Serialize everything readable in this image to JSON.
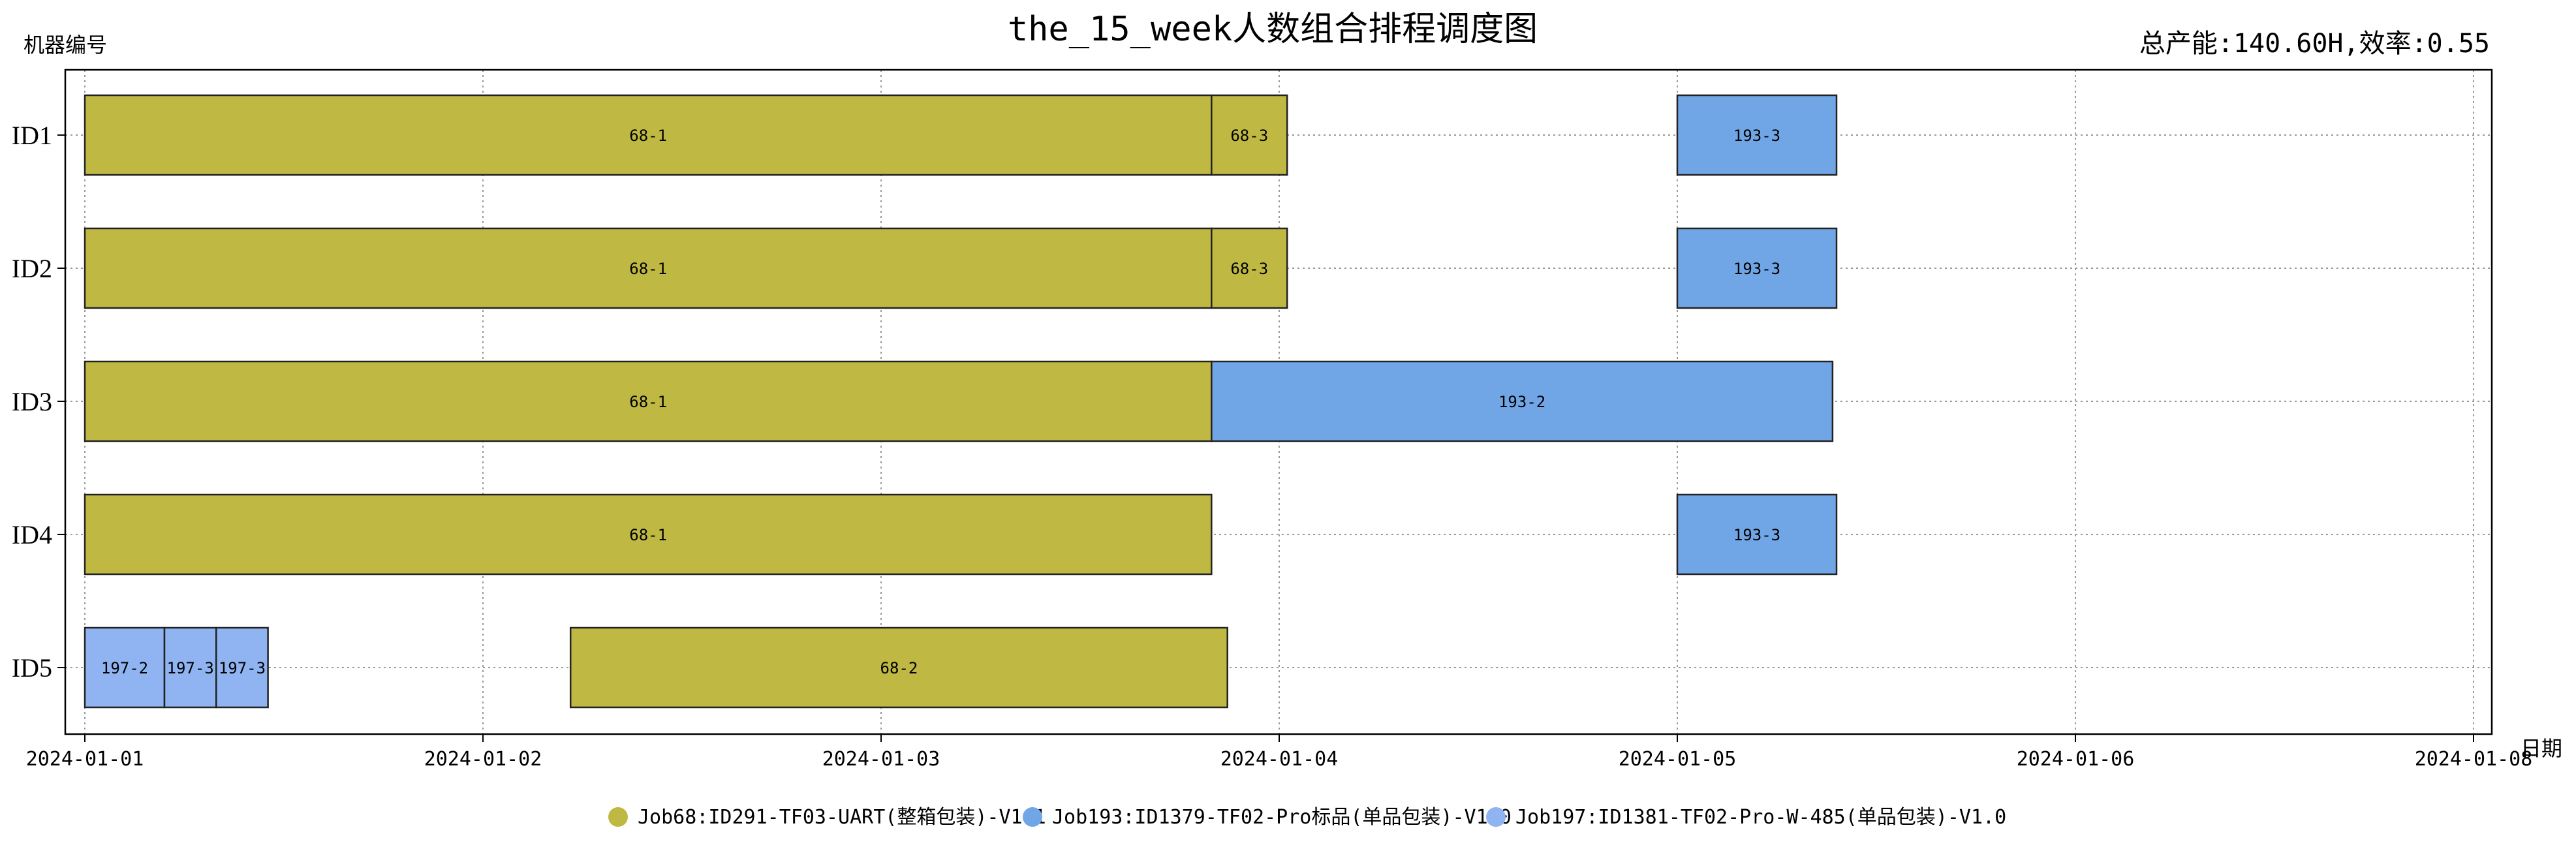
{
  "chart_data": {
    "type": "gantt",
    "title": "the_15_week人数组合排程调度图",
    "summary": "总产能:140.60H,效率:0.55",
    "ylabel": "机器编号",
    "xlabel": "日期",
    "x_ticks": [
      "2024-01-01",
      "2024-01-02",
      "2024-01-03",
      "2024-01-04",
      "2024-01-05",
      "2024-01-06",
      "2024-01-08"
    ],
    "x_range_days": [
      0,
      6
    ],
    "machines": [
      "ID1",
      "ID2",
      "ID3",
      "ID4",
      "ID5"
    ],
    "grid": true,
    "legend_position": "bottom-center",
    "jobs": [
      {
        "id": "68",
        "name": "Job68:ID291-TF03-UART(整箱包装)-V1.1",
        "color": "#bfb843"
      },
      {
        "id": "193",
        "name": "Job193:ID1379-TF02-Pro标品(单品包装)-V1.0",
        "color": "#71a6e6"
      },
      {
        "id": "197",
        "name": "Job197:ID1381-TF02-Pro-W-485(单品包装)-V1.0",
        "color": "#8fb4f1"
      }
    ],
    "tasks": [
      {
        "machine": "ID1",
        "job": "68",
        "label": "68-1",
        "start": 0.0,
        "end": 2.83
      },
      {
        "machine": "ID1",
        "job": "68",
        "label": "68-3",
        "start": 2.83,
        "end": 3.02
      },
      {
        "machine": "ID1",
        "job": "193",
        "label": "193-3",
        "start": 4.0,
        "end": 4.4
      },
      {
        "machine": "ID2",
        "job": "68",
        "label": "68-1",
        "start": 0.0,
        "end": 2.83
      },
      {
        "machine": "ID2",
        "job": "68",
        "label": "68-3",
        "start": 2.83,
        "end": 3.02
      },
      {
        "machine": "ID2",
        "job": "193",
        "label": "193-3",
        "start": 4.0,
        "end": 4.4
      },
      {
        "machine": "ID3",
        "job": "68",
        "label": "68-1",
        "start": 0.0,
        "end": 2.83
      },
      {
        "machine": "ID3",
        "job": "193",
        "label": "193-2",
        "start": 2.83,
        "end": 4.39
      },
      {
        "machine": "ID4",
        "job": "68",
        "label": "68-1",
        "start": 0.0,
        "end": 2.83
      },
      {
        "machine": "ID4",
        "job": "193",
        "label": "193-3",
        "start": 4.0,
        "end": 4.4
      },
      {
        "machine": "ID5",
        "job": "197",
        "label": "197-2",
        "start": 0.0,
        "end": 0.2
      },
      {
        "machine": "ID5",
        "job": "197",
        "label": "197-3",
        "start": 0.2,
        "end": 0.33
      },
      {
        "machine": "ID5",
        "job": "197",
        "label": "197-3",
        "start": 0.33,
        "end": 0.46
      },
      {
        "machine": "ID5",
        "job": "68",
        "label": "68-2",
        "start": 1.22,
        "end": 2.87
      }
    ]
  }
}
